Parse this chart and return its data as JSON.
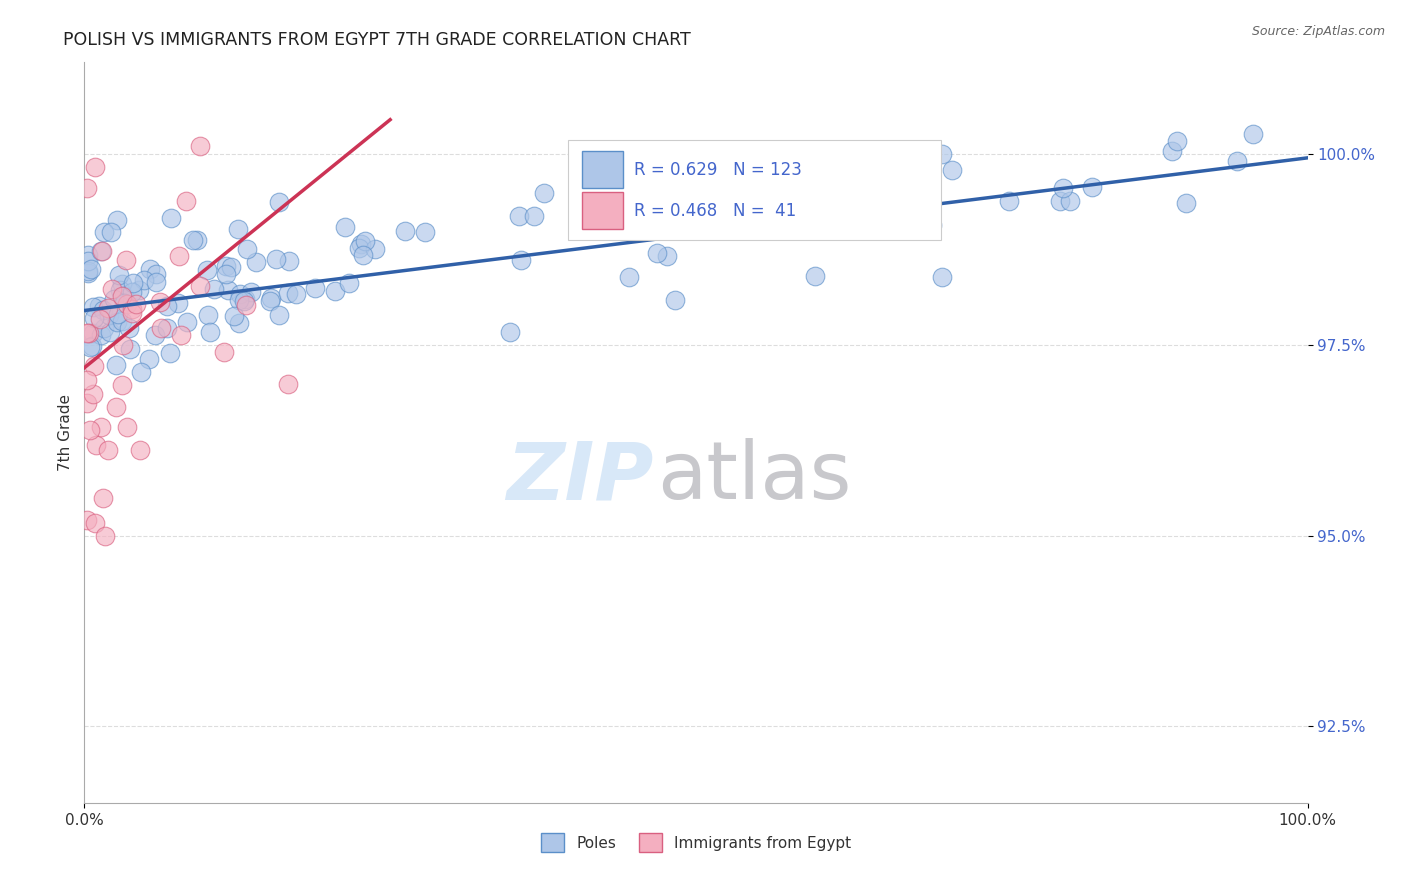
{
  "title": "POLISH VS IMMIGRANTS FROM EGYPT 7TH GRADE CORRELATION CHART",
  "source_text": "Source: ZipAtlas.com",
  "ylabel": "7th Grade",
  "xlim": [
    0.0,
    100.0
  ],
  "ylim": [
    91.5,
    101.2
  ],
  "yticks": [
    92.5,
    95.0,
    97.5,
    100.0
  ],
  "ytick_labels": [
    "92.5%",
    "95.0%",
    "97.5%",
    "100.0%"
  ],
  "poles_color": "#aec6e8",
  "egypt_color": "#f4afc0",
  "poles_edge_color": "#5b8fc9",
  "egypt_edge_color": "#d96080",
  "poles_line_color": "#3060a8",
  "egypt_line_color": "#cc3355",
  "legend_poles_label": "Poles",
  "legend_egypt_label": "Immigrants from Egypt",
  "r_poles": 0.629,
  "n_poles": 123,
  "r_egypt": 0.468,
  "n_egypt": 41,
  "watermark_zip_color": "#d8e8f8",
  "watermark_atlas_color": "#c8c8cc",
  "background_color": "#ffffff",
  "grid_color": "#dddddd",
  "seed_poles": 12,
  "seed_egypt": 77
}
